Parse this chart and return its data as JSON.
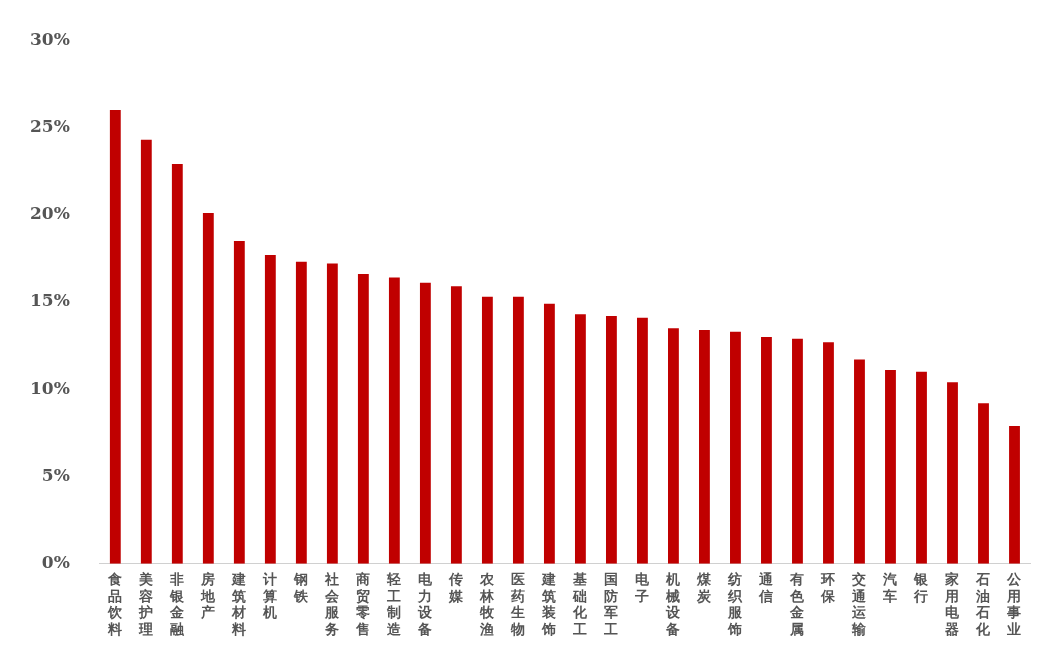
{
  "chart_data": {
    "type": "bar",
    "categories": [
      "食品饮料",
      "美容护理",
      "非银金融",
      "房地产",
      "建筑材料",
      "计算机",
      "钢铁",
      "社会服务",
      "商贸零售",
      "轻工制造",
      "电力设备",
      "传媒",
      "农林牧渔",
      "医药生物",
      "建筑装饰",
      "基础化工",
      "国防军工",
      "电子",
      "机械设备",
      "煤炭",
      "纺织服饰",
      "通信",
      "有色金属",
      "环保",
      "交通运输",
      "汽车",
      "银行",
      "家用电器",
      "石油石化",
      "公用事业"
    ],
    "values": [
      26.0,
      24.3,
      22.9,
      20.1,
      18.5,
      17.7,
      17.3,
      17.2,
      16.6,
      16.4,
      16.1,
      15.9,
      15.3,
      15.3,
      14.9,
      14.3,
      14.2,
      14.1,
      13.5,
      13.4,
      13.3,
      13.0,
      12.9,
      12.7,
      11.7,
      11.1,
      11.0,
      10.4,
      9.2,
      7.9
    ],
    "color": "#c00000",
    "ylim": [
      0,
      30
    ],
    "yticks": [
      {
        "value": 0,
        "label": "0%"
      },
      {
        "value": 5,
        "label": "5%"
      },
      {
        "value": 10,
        "label": "10%"
      },
      {
        "value": 15,
        "label": "15%"
      },
      {
        "value": 20,
        "label": "20%"
      },
      {
        "value": 25,
        "label": "25%"
      },
      {
        "value": 30,
        "label": "30%"
      }
    ],
    "grid": false,
    "legend": false
  }
}
